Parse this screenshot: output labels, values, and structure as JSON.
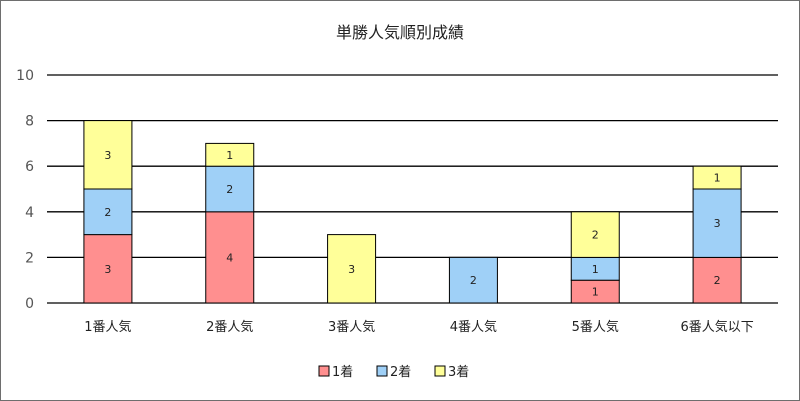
{
  "chart_data": {
    "type": "bar",
    "stacked": true,
    "title": "単勝人気順別成績",
    "categories": [
      "1番人気",
      "2番人気",
      "3番人気",
      "4番人気",
      "5番人気",
      "6番人気以下"
    ],
    "series": [
      {
        "name": "1着",
        "color": "#ff8f8f",
        "values": [
          3,
          4,
          0,
          0,
          1,
          2
        ]
      },
      {
        "name": "2着",
        "color": "#9fd0f7",
        "values": [
          2,
          2,
          0,
          2,
          1,
          3
        ]
      },
      {
        "name": "3着",
        "color": "#ffff99",
        "values": [
          3,
          1,
          3,
          0,
          2,
          1
        ]
      }
    ],
    "ylim": [
      0,
      10
    ],
    "yticks": [
      "0",
      "2",
      "4",
      "6",
      "8",
      "10"
    ],
    "grid": true,
    "legend_position": "bottom"
  }
}
